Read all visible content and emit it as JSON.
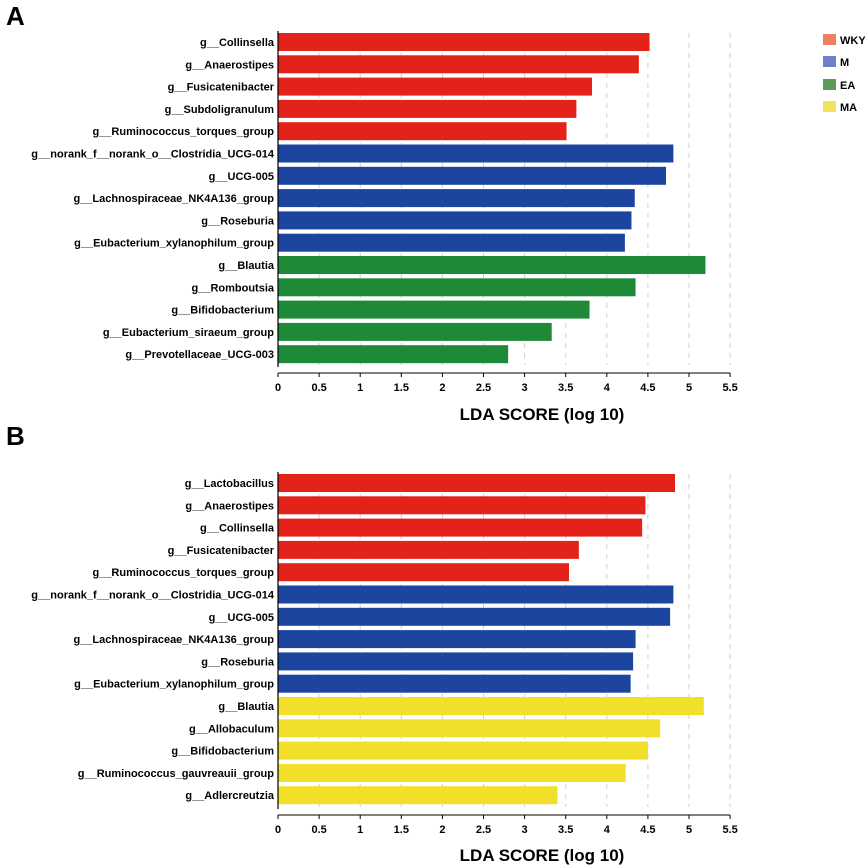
{
  "legend": {
    "items": [
      {
        "label": "WKY",
        "color": "#f08060"
      },
      {
        "label": "M",
        "color": "#6f80c8"
      },
      {
        "label": "EA",
        "color": "#5a9a5a"
      },
      {
        "label": "MA",
        "color": "#f2e45a"
      }
    ]
  },
  "chart_data": [
    {
      "type": "bar",
      "orientation": "horizontal",
      "panel": "A",
      "xlabel": "LDA SCORE (log 10)",
      "xlim": [
        0,
        5.5
      ],
      "xticks": [
        "0",
        "0.5",
        "1",
        "1.5",
        "2",
        "2.5",
        "3",
        "3.5",
        "4",
        "4.5",
        "5",
        "5.5"
      ],
      "grid": "vertical dashed",
      "categories": [
        "g__Collinsella",
        "g__Anaerostipes",
        "g__Fusicatenibacter",
        "g__Subdoligranulum",
        "g__Ruminococcus_torques_group",
        "g__norank_f__norank_o__Clostridia_UCG-014",
        "g__UCG-005",
        "g__Lachnospiraceae_NK4A136_group",
        "g__Roseburia",
        "g__Eubacterium_xylanophilum_group",
        "g__Blautia",
        "g__Romboutsia",
        "g__Bifidobacterium",
        "g__Eubacterium_siraeum_group",
        "g__Prevotellaceae_UCG-003"
      ],
      "values": [
        4.52,
        4.39,
        3.82,
        3.63,
        3.51,
        4.81,
        4.72,
        4.34,
        4.3,
        4.22,
        5.2,
        4.35,
        3.79,
        3.33,
        2.8
      ],
      "groups": [
        "WKY",
        "WKY",
        "WKY",
        "WKY",
        "WKY",
        "M",
        "M",
        "M",
        "M",
        "M",
        "EA",
        "EA",
        "EA",
        "EA",
        "EA"
      ],
      "colors": [
        "#e32219",
        "#e32219",
        "#e32219",
        "#e32219",
        "#e32219",
        "#1c45a0",
        "#1c45a0",
        "#1c45a0",
        "#1c45a0",
        "#1c45a0",
        "#1e8a38",
        "#1e8a38",
        "#1e8a38",
        "#1e8a38",
        "#1e8a38"
      ]
    },
    {
      "type": "bar",
      "orientation": "horizontal",
      "panel": "B",
      "xlabel": "LDA SCORE (log 10)",
      "xlim": [
        0,
        5.5
      ],
      "xticks": [
        "0",
        "0.5",
        "1",
        "1.5",
        "2",
        "2.5",
        "3",
        "3.5",
        "4",
        "4.5",
        "5",
        "5.5"
      ],
      "grid": "vertical dashed",
      "categories": [
        "g__Lactobacillus",
        "g__Anaerostipes",
        "g__Collinsella",
        "g__Fusicatenibacter",
        "g__Ruminococcus_torques_group",
        "g__norank_f__norank_o__Clostridia_UCG-014",
        "g__UCG-005",
        "g__Lachnospiraceae_NK4A136_group",
        "g__Roseburia",
        "g__Eubacterium_xylanophilum_group",
        "g__Blautia",
        "g__Allobaculum",
        "g__Bifidobacterium",
        "g__Ruminococcus_gauvreauii_group",
        "g__Adlercreutzia"
      ],
      "values": [
        4.83,
        4.47,
        4.43,
        3.66,
        3.54,
        4.81,
        4.77,
        4.35,
        4.32,
        4.29,
        5.18,
        4.65,
        4.5,
        4.23,
        3.4
      ],
      "groups": [
        "WKY",
        "WKY",
        "WKY",
        "WKY",
        "WKY",
        "M",
        "M",
        "M",
        "M",
        "M",
        "MA",
        "MA",
        "MA",
        "MA",
        "MA"
      ],
      "colors": [
        "#e32219",
        "#e32219",
        "#e32219",
        "#e32219",
        "#e32219",
        "#1c45a0",
        "#1c45a0",
        "#1c45a0",
        "#1c45a0",
        "#1c45a0",
        "#f2df2a",
        "#f2df2a",
        "#f2df2a",
        "#f2df2a",
        "#f2df2a"
      ]
    }
  ]
}
